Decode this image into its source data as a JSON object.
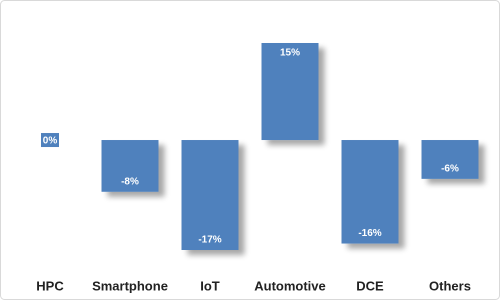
{
  "chart_data": {
    "type": "bar",
    "categories": [
      "HPC",
      "Smartphone",
      "IoT",
      "Automotive",
      "DCE",
      "Others"
    ],
    "values": [
      0,
      -8,
      -17,
      15,
      -16,
      -6
    ],
    "value_labels": [
      "0%",
      "-8%",
      "-17%",
      "15%",
      "-16%",
      "-6%"
    ],
    "color": "#4f81bd"
  }
}
